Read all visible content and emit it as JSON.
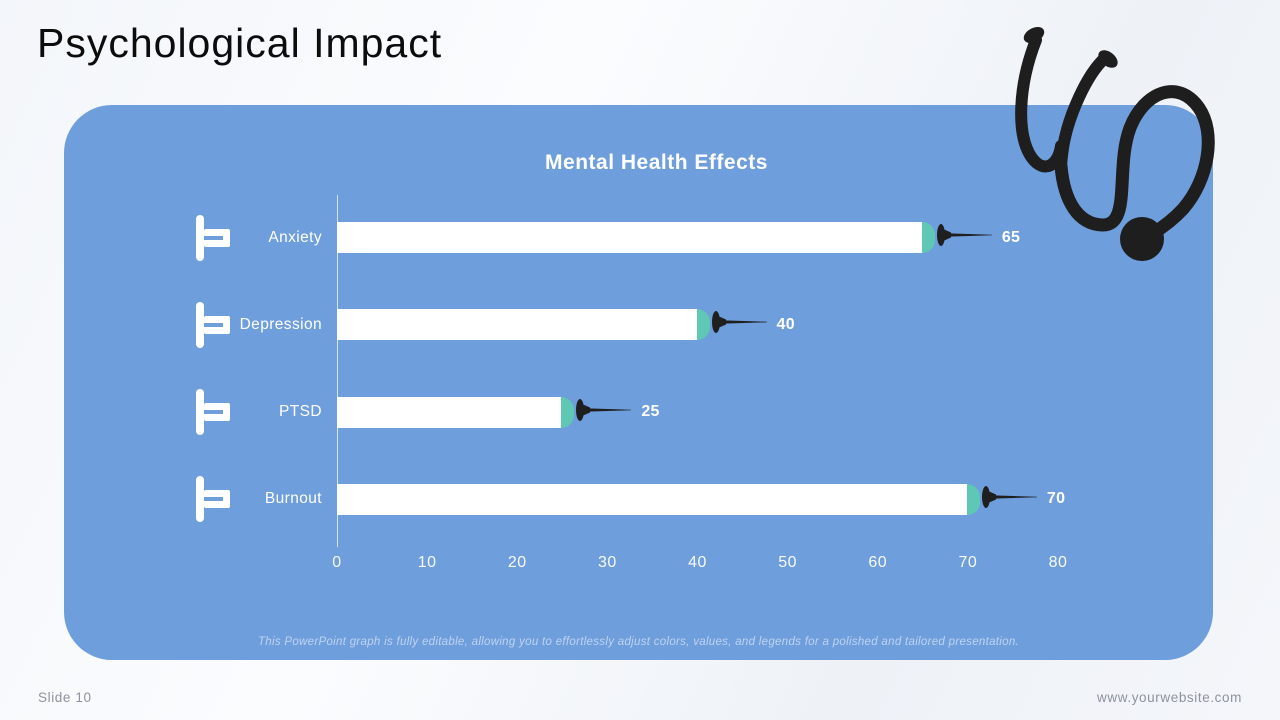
{
  "slide": {
    "title": "Psychological Impact"
  },
  "chart_data": {
    "type": "bar",
    "orientation": "horizontal",
    "title": "Mental Health Effects",
    "categories": [
      "Anxiety",
      "Depression",
      "PTSD",
      "Burnout"
    ],
    "values": [
      65,
      40,
      25,
      70
    ],
    "value_labels": [
      "65",
      "40",
      "25",
      "70"
    ],
    "xlim": [
      0,
      80
    ],
    "x_ticks": [
      "0",
      "10",
      "20",
      "30",
      "40",
      "50",
      "60",
      "70",
      "80"
    ],
    "ylabel": "",
    "xlabel": "",
    "grid": "off",
    "legend": "none",
    "colors": {
      "panel_background": "#6f9edd",
      "bar_fill": "#ffffff",
      "bar_cap_teal": "#5fc8b5",
      "needle_black": "#1f1f1f",
      "text_white": "#ffffff"
    }
  },
  "panel_note": "This PowerPoint graph is fully editable, allowing you to effortlessly adjust colors, values, and legends for a polished and tailored presentation.",
  "footer": {
    "slide_label": "Slide 10",
    "website": "www.yourwebsite.com"
  },
  "icons": {
    "decoration": "stethoscope-icon",
    "bar_left": "syringe-plunger-icon",
    "bar_right": "syringe-needle-icon"
  }
}
